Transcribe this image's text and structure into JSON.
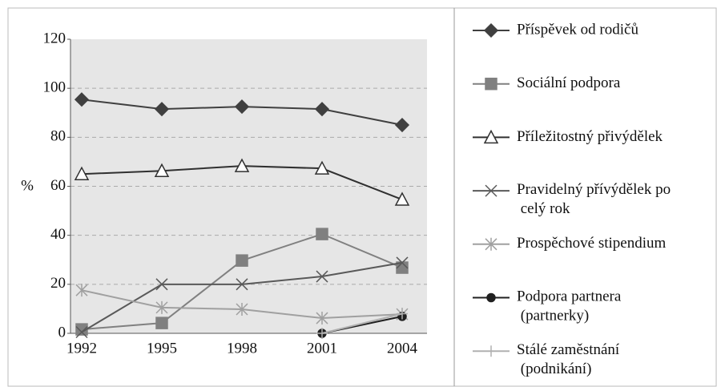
{
  "chart_data": {
    "type": "line",
    "y_label": "%",
    "categories": [
      "1992",
      "1995",
      "1998",
      "2001",
      "2004"
    ],
    "ylim": [
      0,
      120
    ],
    "yticks": [
      0,
      20,
      40,
      60,
      80,
      100,
      120
    ],
    "grid": true,
    "series": [
      {
        "name": "Příspěvek od rodičů",
        "color": "#404040",
        "marker": "diamond",
        "values": [
          95.4,
          91.5,
          92.5,
          91.5,
          85
        ]
      },
      {
        "name": "Sociální podpora",
        "color": "#808080",
        "marker": "square",
        "values": [
          1.6,
          4.2,
          29.7,
          40.5,
          26.8
        ]
      },
      {
        "name": "Příležitostný přivýdělek",
        "color": "#303030",
        "marker": "triangle",
        "values": [
          65,
          66.3,
          68.3,
          67.3,
          54.6
        ]
      },
      {
        "name": "Pravidelný přívýdělek po celý rok",
        "color": "#595959",
        "marker": "x",
        "values": [
          0.5,
          20,
          20,
          23.2,
          28.8
        ]
      },
      {
        "name": "Prospěchové stipendium",
        "color": "#a0a0a0",
        "marker": "asterisk",
        "values": [
          17.6,
          10.5,
          9.8,
          6.2,
          7.8
        ]
      },
      {
        "name": "Podpora partnera (partnerky)",
        "color": "#202020",
        "marker": "circle",
        "values": [
          null,
          null,
          null,
          0,
          6.9
        ]
      },
      {
        "name": "Stálé zaměstnání (podnikání)",
        "color": "#b0b0b0",
        "marker": "plus",
        "values": [
          null,
          null,
          null,
          0,
          8
        ]
      }
    ]
  }
}
